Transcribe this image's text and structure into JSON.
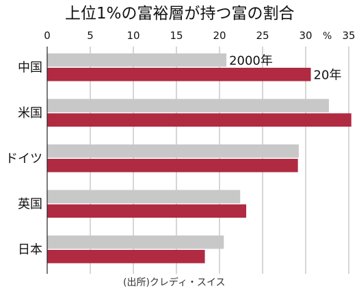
{
  "chart_data": {
    "type": "bar",
    "orientation": "horizontal",
    "title": "上位1%の富裕層が持つ富の割合",
    "unit": "%",
    "x_ticks": [
      "0",
      "5",
      "10",
      "15",
      "20",
      "25",
      "30",
      "35"
    ],
    "xlim": [
      0,
      35
    ],
    "categories": [
      "中国",
      "米国",
      "ドイツ",
      "英国",
      "日本"
    ],
    "series": [
      {
        "name": "2000年",
        "color": "#c8c8c8",
        "values": [
          20.8,
          32.7,
          29.2,
          22.4,
          20.5
        ]
      },
      {
        "name": "20年",
        "color": "#b02a42",
        "values": [
          30.6,
          35.3,
          29.1,
          23.1,
          18.3
        ]
      }
    ],
    "source": "(出所)クレディ・スイス",
    "grid": true,
    "legend": "inline labels next to the first category's bars"
  }
}
